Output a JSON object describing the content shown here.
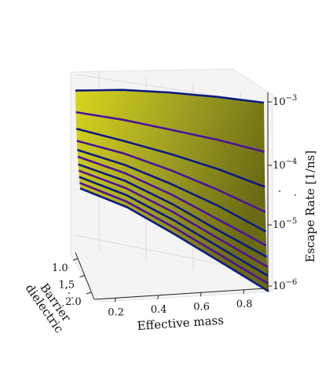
{
  "chart_data": {
    "type": "surface3d",
    "title": "",
    "xlabel": "Effective mass",
    "ylabel": "Barrier dielectric",
    "zlabel": "Escape Rate [1/ns]",
    "zscale": "log",
    "grid": true,
    "x_ticks": [
      "0.2",
      "0.4",
      "0.6",
      "0.8"
    ],
    "y_ticks": [
      "1.0",
      "1.5",
      "2.0"
    ],
    "z_ticks": [
      "10^-3",
      "10^-4",
      "10^-5",
      "10^-6"
    ],
    "x_range": [
      0.1,
      0.9
    ],
    "y_range": [
      1.0,
      2.0
    ],
    "z_range": [
      1e-06,
      0.001
    ],
    "effective_mass": [
      0.1,
      0.3,
      0.5,
      0.7,
      0.9
    ],
    "barrier_dielectric": [
      1.0,
      1.1,
      1.2,
      1.3,
      1.4,
      1.5,
      1.6,
      1.7,
      1.8,
      1.9,
      2.0
    ],
    "series": [
      {
        "values": [
          0.0005,
          0.0007,
          0.00085,
          0.00095,
          0.001
        ]
      },
      {
        "values": [
          0.00022,
          0.00022,
          0.0002,
          0.00018,
          0.00015
        ]
      },
      {
        "values": [
          0.00012,
          0.0001,
          8e-05,
          6e-05,
          4e-05
        ]
      },
      {
        "values": [
          8e-05,
          6.5e-05,
          4.5e-05,
          2.8e-05,
          1.6e-05
        ]
      },
      {
        "values": [
          6e-05,
          4.5e-05,
          2.8e-05,
          1.6e-05,
          8e-06
        ]
      },
      {
        "values": [
          5e-05,
          3.5e-05,
          2e-05,
          1e-05,
          5e-06
        ]
      },
      {
        "values": [
          4e-05,
          2.8e-05,
          1.5e-05,
          7e-06,
          3.5e-06
        ]
      },
      {
        "values": [
          3.4e-05,
          2.3e-05,
          1.2e-05,
          5.5e-06,
          2.6e-06
        ]
      },
      {
        "values": [
          2.9e-05,
          1.9e-05,
          9.5e-06,
          4.3e-06,
          2e-06
        ]
      },
      {
        "values": [
          2.5e-05,
          1.6e-05,
          7.8e-06,
          3.5e-06,
          1.6e-06
        ]
      },
      {
        "values": [
          2.2e-05,
          1.4e-05,
          6.5e-06,
          2.9e-06,
          1.3e-06
        ]
      }
    ],
    "colors": {
      "surface_light": "#d2d11c",
      "surface_dark": "#6b6b14",
      "line_dark": "#0d1a80",
      "line_purple": "#4b1497",
      "pane": "#f2f2f2",
      "grid": "#dcdcdc"
    }
  }
}
